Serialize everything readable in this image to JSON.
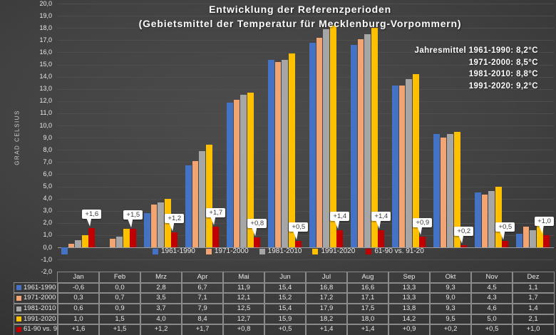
{
  "title": {
    "line1": "Entwicklung der Referenzperioden",
    "line2": "(Gebietsmittel der Temperatur für Mecklenburg-Vorpommern)"
  },
  "annotation": {
    "lines": [
      "Jahresmittel 1961-1990: 8,2°C",
      "1971-2000: 8,5°C",
      "1981-2010: 8,8°C",
      "1991-2020: 9,2°C"
    ]
  },
  "chart_data": {
    "type": "bar",
    "title": "Entwicklung der Referenzperioden (Gebietsmittel der Temperatur für Mecklenburg-Vorpommern)",
    "ylabel": "GRAD CELSIUS",
    "xlabel": "",
    "ylim": [
      -2,
      20
    ],
    "y_tick_step": 1,
    "y_ticks": [
      "20,0",
      "19,0",
      "18,0",
      "17,0",
      "16,0",
      "15,0",
      "14,0",
      "13,0",
      "12,0",
      "11,0",
      "10,0",
      "9,0",
      "8,0",
      "7,0",
      "6,0",
      "5,0",
      "4,0",
      "3,0",
      "2,0",
      "1,0",
      "0,0",
      "-1,0",
      "-2,0"
    ],
    "grid": true,
    "legend_position": "bottom",
    "categories": [
      "Jan",
      "Feb",
      "Mrz",
      "Apr",
      "Mai",
      "Jun",
      "Jul",
      "Aug",
      "Sep",
      "Okt",
      "Nov",
      "Dez"
    ],
    "series": [
      {
        "name": "1961-1990",
        "color": "#4472C4",
        "values": [
          -0.6,
          0.0,
          2.8,
          6.7,
          11.9,
          15.4,
          16.8,
          16.6,
          13.3,
          9.3,
          4.5,
          1.1
        ]
      },
      {
        "name": "1971-2000",
        "color": "#F2A572",
        "values": [
          0.3,
          0.7,
          3.5,
          7.1,
          12.1,
          15.2,
          17.2,
          17.1,
          13.3,
          9.0,
          4.3,
          1.7
        ]
      },
      {
        "name": "1981-2010",
        "color": "#A6A6A6",
        "values": [
          0.6,
          0.9,
          3.7,
          7.9,
          12.5,
          15.4,
          17.9,
          17.5,
          13.8,
          9.3,
          4.6,
          1.4
        ]
      },
      {
        "name": "1991-2020",
        "color": "#FFC000",
        "values": [
          1.0,
          1.5,
          4.0,
          8.4,
          12.7,
          15.9,
          18.2,
          18.0,
          14.2,
          9.5,
          5.0,
          2.1
        ]
      },
      {
        "name": "61-90 vs. 91-20",
        "color": "#C00000",
        "values": [
          1.6,
          1.5,
          1.2,
          1.7,
          0.8,
          0.5,
          1.4,
          1.4,
          0.9,
          0.2,
          0.5,
          1.0
        ]
      }
    ],
    "callout_series": "61-90 vs. 91-20",
    "callout_labels": [
      "+1,6",
      "+1,5",
      "+1,2",
      "+1,7",
      "+0,8",
      "+0,5",
      "+1,4",
      "+1,4",
      "+0,9",
      "+0,2",
      "+0,5",
      "+1,0"
    ]
  },
  "table": {
    "columns": [
      "Jan",
      "Feb",
      "Mrz",
      "Apr",
      "Mai",
      "Jun",
      "Jul",
      "Aug",
      "Sep",
      "Okt",
      "Nov",
      "Dez"
    ],
    "rows": [
      {
        "label": "1961-1990",
        "color": "#4472C4",
        "cells": [
          "-0,6",
          "0,0",
          "2,8",
          "6,7",
          "11,9",
          "15,4",
          "16,8",
          "16,6",
          "13,3",
          "9,3",
          "4,5",
          "1,1"
        ]
      },
      {
        "label": "1971-2000",
        "color": "#F2A572",
        "cells": [
          "0,3",
          "0,7",
          "3,5",
          "7,1",
          "12,1",
          "15,2",
          "17,2",
          "17,1",
          "13,3",
          "9,0",
          "4,3",
          "1,7"
        ]
      },
      {
        "label": "1981-2010",
        "color": "#A6A6A6",
        "cells": [
          "0,6",
          "0,9",
          "3,7",
          "7,9",
          "12,5",
          "15,4",
          "17,9",
          "17,5",
          "13,8",
          "9,3",
          "4,6",
          "1,4"
        ]
      },
      {
        "label": "1991-2020",
        "color": "#FFC000",
        "cells": [
          "1,0",
          "1,5",
          "4,0",
          "8,4",
          "12,7",
          "15,9",
          "18,2",
          "18,0",
          "14,2",
          "9,5",
          "5,0",
          "2,1"
        ]
      },
      {
        "label": "61-90 vs. 91-20",
        "color": "#C00000",
        "cells": [
          "+1,6",
          "+1,5",
          "+1,2",
          "+1,7",
          "+0,8",
          "+0,5",
          "+1,4",
          "+1,4",
          "+0,9",
          "+0,2",
          "+0,5",
          "+1,0"
        ]
      }
    ]
  },
  "colors": {
    "background_center": "#4c4c4c",
    "background_edge": "#1e1e1e",
    "gridline": "#4e4e4e",
    "axis_line": "#9b9b9b",
    "text": "#e9e9e9",
    "callout_bg": "#fdfdfd"
  }
}
